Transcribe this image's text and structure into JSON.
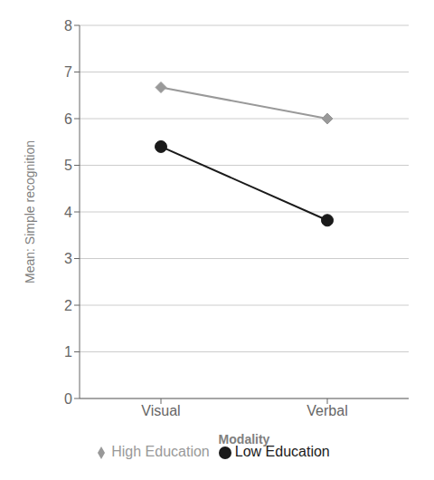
{
  "chart_data": {
    "type": "line",
    "categories": [
      "Visual",
      "Verbal"
    ],
    "series": [
      {
        "name": "Low Education",
        "color": "#1a1a1a",
        "marker": "circle",
        "values": [
          5.4,
          3.82
        ]
      },
      {
        "name": "High Education",
        "color": "#999999",
        "marker": "diamond",
        "values": [
          6.67,
          6.0
        ]
      }
    ],
    "xlabel": "Modality",
    "ylabel": "Mean: Simple recognition",
    "ylim": [
      0,
      8
    ],
    "yticks": [
      0,
      1,
      2,
      3,
      4,
      5,
      6,
      7,
      8
    ],
    "grid": true,
    "legend": "bottom"
  }
}
